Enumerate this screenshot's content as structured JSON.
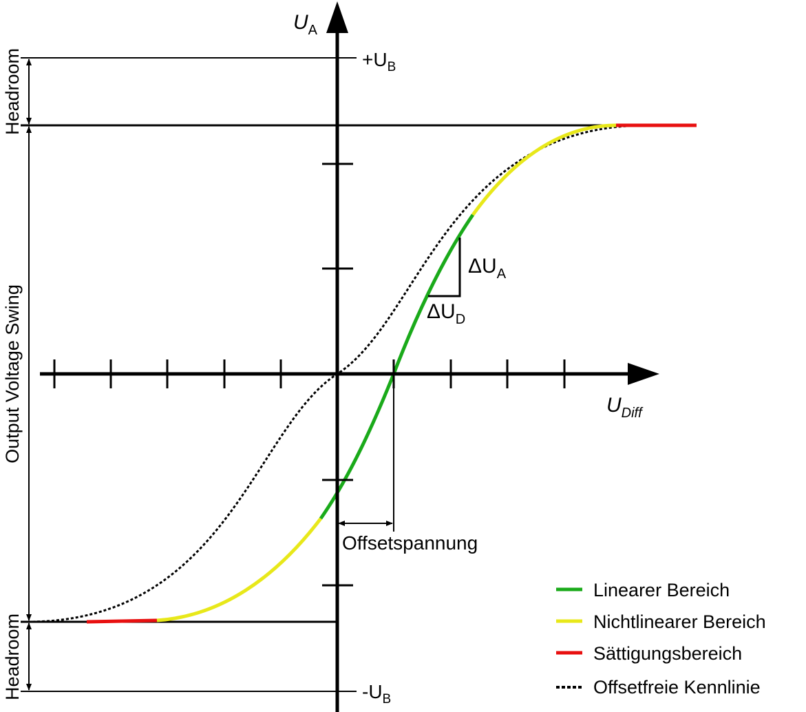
{
  "axes": {
    "y_label_main": "U",
    "y_label_sub": "A",
    "x_label_main": "U",
    "x_label_sub": "Diff"
  },
  "levels": {
    "pos_supply_prefix": "+U",
    "pos_supply_sub": "B",
    "neg_supply_prefix": "-U",
    "neg_supply_sub": "B"
  },
  "annotations": {
    "headroom_top": "Headroom",
    "headroom_bottom": "Headroom",
    "output_swing": "Output Voltage Swing",
    "offset": "Offsetspannung",
    "delta_ua_main": "ΔU",
    "delta_ua_sub": "A",
    "delta_ud_main": "ΔU",
    "delta_ud_sub": "D"
  },
  "legend": {
    "items": [
      {
        "label": "Linearer Bereich",
        "color": "#1aaa1a",
        "style": "solid"
      },
      {
        "label": "Nichtlinearer Bereich",
        "color": "#e8e81a",
        "style": "solid"
      },
      {
        "label": "Sättigungsbereich",
        "color": "#e81010",
        "style": "solid"
      },
      {
        "label": "Offsetfreie Kennlinie",
        "color": "#000000",
        "style": "dotted"
      }
    ]
  },
  "colors": {
    "linear": "#1aaa1a",
    "nonlinear": "#e8e81a",
    "saturation": "#e81010",
    "axis": "#000000"
  }
}
